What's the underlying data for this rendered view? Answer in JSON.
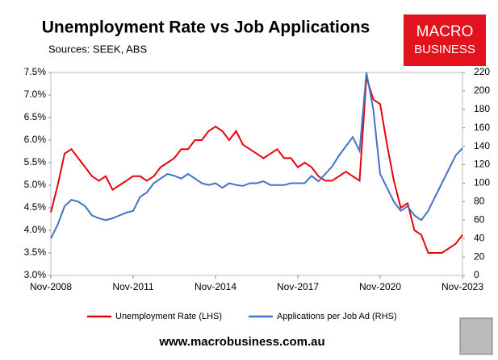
{
  "chart_data": {
    "type": "line",
    "title": "Unemployment Rate vs Job Applications",
    "subtitle": "Sources: SEEK, ABS",
    "categories": [
      "Nov-2008",
      null,
      null,
      null,
      null,
      null,
      null,
      null,
      null,
      null,
      null,
      null,
      "Nov-2011",
      null,
      null,
      null,
      null,
      null,
      null,
      null,
      null,
      null,
      null,
      null,
      "Nov-2014",
      null,
      null,
      null,
      null,
      null,
      null,
      null,
      null,
      null,
      null,
      null,
      "Nov-2017",
      null,
      null,
      null,
      null,
      null,
      null,
      null,
      null,
      null,
      null,
      null,
      "Nov-2020",
      null,
      null,
      null,
      null,
      null,
      null,
      null,
      null,
      null,
      null,
      null,
      "Nov-2023"
    ],
    "series": [
      {
        "name": "Unemployment Rate (LHS)",
        "color": "#e8000b",
        "axis": "y",
        "values": [
          4.4,
          5.0,
          5.7,
          5.8,
          5.6,
          5.4,
          5.2,
          5.1,
          5.2,
          4.9,
          5.0,
          5.1,
          5.2,
          5.2,
          5.1,
          5.2,
          5.4,
          5.5,
          5.6,
          5.8,
          5.8,
          6.0,
          6.0,
          6.2,
          6.3,
          6.2,
          6.0,
          6.2,
          5.9,
          5.8,
          5.7,
          5.6,
          5.7,
          5.8,
          5.6,
          5.6,
          5.4,
          5.5,
          5.4,
          5.2,
          5.1,
          5.1,
          5.2,
          5.3,
          5.2,
          5.1,
          7.4,
          6.9,
          6.8,
          5.9,
          5.1,
          4.5,
          4.6,
          4.0,
          3.9,
          3.5,
          3.5,
          3.5,
          3.6,
          3.7,
          3.9
        ]
      },
      {
        "name": "Applications per Job Ad (RHS)",
        "color": "#4472c4",
        "axis": "y2",
        "values": [
          40,
          55,
          75,
          82,
          80,
          75,
          65,
          62,
          60,
          62,
          65,
          68,
          70,
          85,
          90,
          100,
          105,
          110,
          108,
          105,
          110,
          105,
          100,
          98,
          100,
          95,
          100,
          98,
          97,
          100,
          100,
          102,
          98,
          98,
          98,
          100,
          100,
          100,
          108,
          102,
          110,
          118,
          130,
          140,
          150,
          135,
          220,
          180,
          110,
          95,
          80,
          70,
          75,
          65,
          60,
          70,
          85,
          100,
          115,
          130,
          138
        ]
      }
    ],
    "ylim": [
      3.0,
      7.5
    ],
    "yticks": [
      {
        "value": 3.0,
        "label": "3.0%"
      },
      {
        "value": 3.5,
        "label": "3.5%"
      },
      {
        "value": 4.0,
        "label": "4.0%"
      },
      {
        "value": 4.5,
        "label": "4.5%"
      },
      {
        "value": 5.0,
        "label": "5.0%"
      },
      {
        "value": 5.5,
        "label": "5.5%"
      },
      {
        "value": 6.0,
        "label": "6.0%"
      },
      {
        "value": 6.5,
        "label": "6.5%"
      },
      {
        "value": 7.0,
        "label": "7.0%"
      },
      {
        "value": 7.5,
        "label": "7.5%"
      }
    ],
    "y2lim": [
      0,
      220
    ],
    "y2ticks": [
      0,
      20,
      40,
      60,
      80,
      100,
      120,
      140,
      160,
      180,
      200,
      220
    ],
    "grid": false,
    "legend": "bottom"
  },
  "brand": {
    "logo": [
      "MACRO",
      "BUSINESS"
    ],
    "website": "www.macrobusiness.com.au"
  }
}
